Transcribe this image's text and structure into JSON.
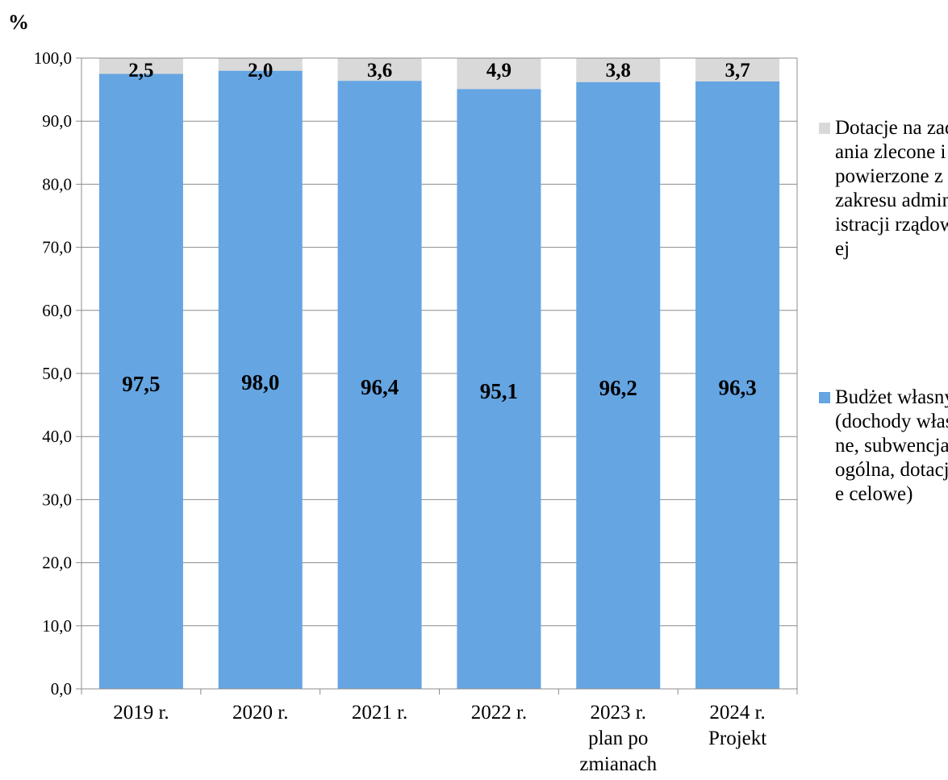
{
  "chart_data": {
    "type": "bar",
    "stacked": true,
    "unit_label": "%",
    "categories": [
      [
        "2019 r."
      ],
      [
        "2020 r."
      ],
      [
        "2021 r."
      ],
      [
        "2022 r."
      ],
      [
        "2023 r.",
        "plan po",
        "zmianach"
      ],
      [
        "2024 r.",
        "Projekt"
      ]
    ],
    "series": [
      {
        "name": "Budżet własny (dochody własne, subwencja ogólna, dotacje celowe)",
        "values": [
          97.5,
          98.0,
          96.4,
          95.1,
          96.2,
          96.3
        ],
        "labels": [
          "97,5",
          "98,0",
          "96,4",
          "95,1",
          "96,2",
          "96,3"
        ],
        "color": "#65A5E2"
      },
      {
        "name": "Dotacje na zadania zlecone i powierzone z zakresu administracji rządowej",
        "values": [
          2.5,
          2.0,
          3.6,
          4.9,
          3.8,
          3.7
        ],
        "labels": [
          "2,5",
          "2,0",
          "3,6",
          "4,9",
          "3,8",
          "3,7"
        ],
        "color": "#D9D9D9"
      }
    ],
    "ylim": [
      0,
      100
    ],
    "yticks": [
      "0,0",
      "10,0",
      "20,0",
      "30,0",
      "40,0",
      "50,0",
      "60,0",
      "70,0",
      "80,0",
      "90,0",
      "100,0"
    ],
    "grid": true,
    "legend_position": "right"
  }
}
